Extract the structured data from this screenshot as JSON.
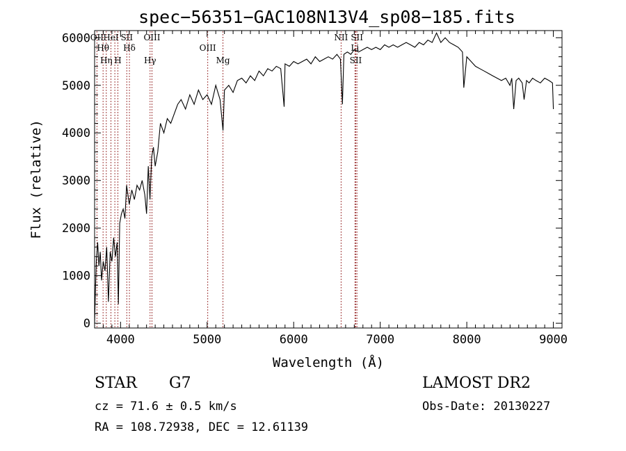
{
  "chart_data": {
    "type": "line",
    "title": "spec−56351−GAC108N13V4_sp08−185.fits",
    "xlabel": "Wavelength (Å)",
    "ylabel": "Flux (relative)",
    "xlim": [
      3700,
      9100
    ],
    "ylim": [
      -100,
      6150
    ],
    "x_ticks": [
      4000,
      5000,
      6000,
      7000,
      8000,
      9000
    ],
    "y_ticks": [
      0,
      1000,
      2000,
      3000,
      4000,
      5000,
      6000
    ],
    "grid": false,
    "series": [
      {
        "color": "#000000",
        "x": [
          3700,
          3710,
          3720,
          3735,
          3750,
          3765,
          3780,
          3800,
          3820,
          3840,
          3860,
          3880,
          3900,
          3920,
          3940,
          3960,
          3975,
          3990,
          4010,
          4030,
          4050,
          4070,
          4100,
          4130,
          4160,
          4190,
          4220,
          4250,
          4280,
          4300,
          4320,
          4340,
          4360,
          4380,
          4400,
          4430,
          4460,
          4500,
          4540,
          4580,
          4620,
          4660,
          4700,
          4750,
          4800,
          4850,
          4900,
          4950,
          5000,
          5050,
          5100,
          5150,
          5183,
          5200,
          5250,
          5300,
          5350,
          5400,
          5450,
          5500,
          5550,
          5600,
          5650,
          5700,
          5750,
          5800,
          5850,
          5890,
          5900,
          5950,
          6000,
          6050,
          6100,
          6150,
          6200,
          6250,
          6300,
          6350,
          6400,
          6450,
          6500,
          6540,
          6563,
          6580,
          6620,
          6660,
          6700,
          6750,
          6800,
          6850,
          6900,
          6950,
          7000,
          7050,
          7100,
          7150,
          7200,
          7250,
          7300,
          7350,
          7400,
          7450,
          7500,
          7550,
          7600,
          7650,
          7700,
          7750,
          7800,
          7850,
          7900,
          7950,
          7965,
          8000,
          8050,
          8100,
          8150,
          8200,
          8250,
          8300,
          8350,
          8400,
          8450,
          8498,
          8520,
          8542,
          8570,
          8600,
          8640,
          8662,
          8690,
          8720,
          8760,
          8800,
          8850,
          8900,
          8950,
          8990,
          9000
        ],
        "values": [
          0,
          700,
          1300,
          1700,
          1200,
          1500,
          900,
          1300,
          1100,
          1600,
          450,
          1500,
          1300,
          1800,
          1400,
          1700,
          400,
          2100,
          2300,
          2400,
          2200,
          2900,
          2500,
          2800,
          2600,
          2900,
          2800,
          3000,
          2700,
          2300,
          3300,
          2600,
          3500,
          3700,
          3300,
          3600,
          4200,
          4000,
          4300,
          4200,
          4400,
          4600,
          4700,
          4500,
          4800,
          4600,
          4900,
          4700,
          4800,
          4600,
          5000,
          4700,
          4050,
          4900,
          5000,
          4850,
          5100,
          5150,
          5050,
          5200,
          5100,
          5300,
          5200,
          5350,
          5300,
          5400,
          5350,
          4550,
          5450,
          5400,
          5500,
          5450,
          5500,
          5550,
          5450,
          5600,
          5500,
          5550,
          5600,
          5550,
          5650,
          5550,
          4600,
          5650,
          5700,
          5650,
          5750,
          5700,
          5750,
          5800,
          5750,
          5800,
          5750,
          5850,
          5800,
          5850,
          5800,
          5850,
          5900,
          5850,
          5800,
          5900,
          5850,
          5950,
          5900,
          6100,
          5900,
          6000,
          5900,
          5850,
          5800,
          5700,
          4950,
          5600,
          5500,
          5400,
          5350,
          5300,
          5250,
          5200,
          5150,
          5100,
          5150,
          5000,
          5150,
          4500,
          5100,
          5150,
          5050,
          4700,
          5100,
          5050,
          5150,
          5100,
          5050,
          5150,
          5100,
          5050,
          4500
        ]
      }
    ],
    "reference_lines": [
      {
        "x": 3727,
        "label": "OII"
      },
      {
        "x": 3798,
        "label": "Hθ"
      },
      {
        "x": 3835,
        "label": "Hη"
      },
      {
        "x": 3889,
        "label": "HeI"
      },
      {
        "x": 3934,
        "label": ""
      },
      {
        "x": 3969,
        "label": "H"
      },
      {
        "x": 4072,
        "label": "SII"
      },
      {
        "x": 4102,
        "label": "Hδ"
      },
      {
        "x": 4341,
        "label": "Hγ"
      },
      {
        "x": 4363,
        "label": "OIII"
      },
      {
        "x": 5007,
        "label": "OIII"
      },
      {
        "x": 5183,
        "label": "Mg"
      },
      {
        "x": 6548,
        "label": "NII"
      },
      {
        "x": 6708,
        "label": "Li"
      },
      {
        "x": 6717,
        "label": "SII"
      },
      {
        "x": 6731,
        "label": "SII"
      }
    ],
    "reference_line_color": "#a03a3a"
  },
  "info": {
    "object_type": "STAR",
    "subclass": "G7",
    "survey": "LAMOST DR2",
    "redshift_text": "cz = 71.6 ± 0.5 km/s",
    "obs_date_text": "Obs-Date: 20130227",
    "coords_text": "RA = 108.72938, DEC =  12.61139"
  }
}
